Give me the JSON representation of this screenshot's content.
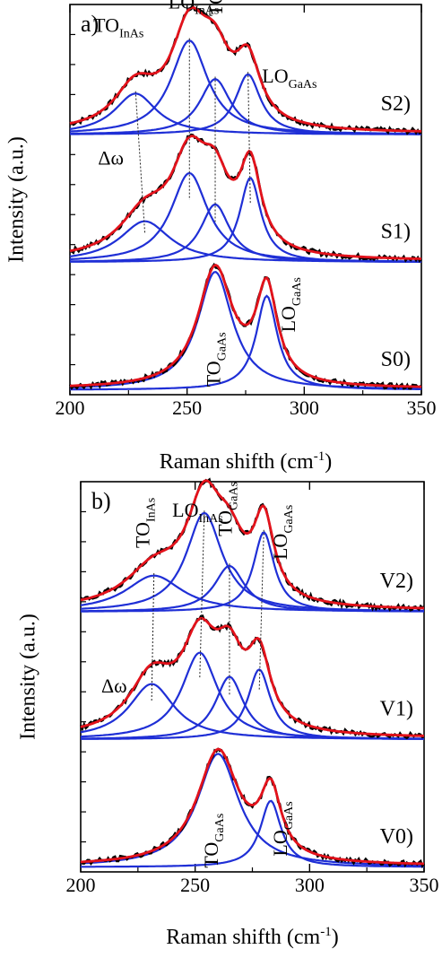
{
  "chart_data": [
    {
      "type": "line",
      "panel_label": "a)",
      "xlabel": "Raman shifth (cm",
      "xlabel_sup": "-1",
      "xlabel_close": ")",
      "ylabel": "Intensity (a.u.)",
      "xlim": [
        200,
        350
      ],
      "xticks": [
        200,
        250,
        300,
        350
      ],
      "grid": false,
      "spectra": [
        {
          "name": "S2)",
          "offset": 2.12,
          "scale": 1.0,
          "components": [
            {
              "center": 228,
              "height": 0.34,
              "width": 11
            },
            {
              "center": 251,
              "height": 0.78,
              "width": 9.5
            },
            {
              "center": 262,
              "height": 0.46,
              "width": 8
            },
            {
              "center": 276,
              "height": 0.5,
              "width": 6.5
            }
          ]
        },
        {
          "name": "S1)",
          "offset": 1.06,
          "scale": 1.0,
          "components": [
            {
              "center": 232,
              "height": 0.34,
              "width": 13
            },
            {
              "center": 251,
              "height": 0.74,
              "width": 9.5
            },
            {
              "center": 262,
              "height": 0.48,
              "width": 7.5
            },
            {
              "center": 277,
              "height": 0.7,
              "width": 5.5
            }
          ]
        },
        {
          "name": "S0)",
          "offset": 0.0,
          "scale": 1.0,
          "components": [
            {
              "center": 262,
              "height": 0.98,
              "width": 9
            },
            {
              "center": 284,
              "height": 0.78,
              "width": 5.5
            }
          ]
        }
      ],
      "annotations": [
        {
          "base": "TO",
          "sub": "InAs",
          "x": 210,
          "y": 0.93,
          "vertical": false
        },
        {
          "base": "LO",
          "sub": "InAs",
          "x": 242,
          "y": 0.99,
          "vertical": false
        },
        {
          "base": "TO",
          "sub": "GaAs",
          "x": 265,
          "y": 0.97,
          "vertical": true
        },
        {
          "base": "LO",
          "sub": "GaAs",
          "x": 282,
          "y": 0.8,
          "vertical": false
        },
        {
          "base": "Δω",
          "sub": "",
          "x": 212,
          "y": 0.59,
          "vertical": false
        },
        {
          "base": "TO",
          "sub": "GaAs",
          "x": 264,
          "y": 0.02,
          "vertical": true
        },
        {
          "base": "LO",
          "sub": "GaAs",
          "x": 296,
          "y": 0.16,
          "vertical": true
        }
      ]
    },
    {
      "type": "line",
      "panel_label": "b)",
      "xlabel": "Raman shifth (cm",
      "xlabel_sup": "-1",
      "xlabel_close": ")",
      "ylabel": "Intensity (a.u.)",
      "xlim": [
        200,
        350
      ],
      "xticks": [
        200,
        250,
        300,
        350
      ],
      "grid": false,
      "spectra": [
        {
          "name": "V2)",
          "offset": 2.12,
          "scale": 1.0,
          "components": [
            {
              "center": 232,
              "height": 0.3,
              "width": 15
            },
            {
              "center": 254,
              "height": 0.82,
              "width": 9.5
            },
            {
              "center": 265,
              "height": 0.38,
              "width": 8
            },
            {
              "center": 280,
              "height": 0.66,
              "width": 5.5
            }
          ]
        },
        {
          "name": "V1)",
          "offset": 1.06,
          "scale": 1.0,
          "components": [
            {
              "center": 231,
              "height": 0.46,
              "width": 12
            },
            {
              "center": 252,
              "height": 0.72,
              "width": 9.5
            },
            {
              "center": 265,
              "height": 0.52,
              "width": 7.5
            },
            {
              "center": 278,
              "height": 0.58,
              "width": 6
            }
          ]
        },
        {
          "name": "V0)",
          "offset": 0.0,
          "scale": 1.0,
          "components": [
            {
              "center": 260,
              "height": 0.94,
              "width": 11
            },
            {
              "center": 283,
              "height": 0.55,
              "width": 5.5
            }
          ]
        }
      ],
      "annotations": [
        {
          "base": "TO",
          "sub": "InAs",
          "x": 230,
          "y": 0.83,
          "vertical": true
        },
        {
          "base": "LO",
          "sub": "InAs",
          "x": 240,
          "y": 0.91,
          "vertical": false
        },
        {
          "base": "TO",
          "sub": "GaAs",
          "x": 266,
          "y": 0.86,
          "vertical": true
        },
        {
          "base": "LO",
          "sub": "GaAs",
          "x": 290,
          "y": 0.8,
          "vertical": true
        },
        {
          "base": "Δω",
          "sub": "",
          "x": 209,
          "y": 0.46,
          "vertical": false
        },
        {
          "base": "TO",
          "sub": "GaAs",
          "x": 260,
          "y": 0.01,
          "vertical": true
        },
        {
          "base": "LO",
          "sub": "GaAs",
          "x": 290,
          "y": 0.04,
          "vertical": true
        }
      ]
    }
  ],
  "colors": {
    "experiment": "#000000",
    "fit_total": "#e3121b",
    "components": "#1f2fd6",
    "guide": "#222222"
  }
}
